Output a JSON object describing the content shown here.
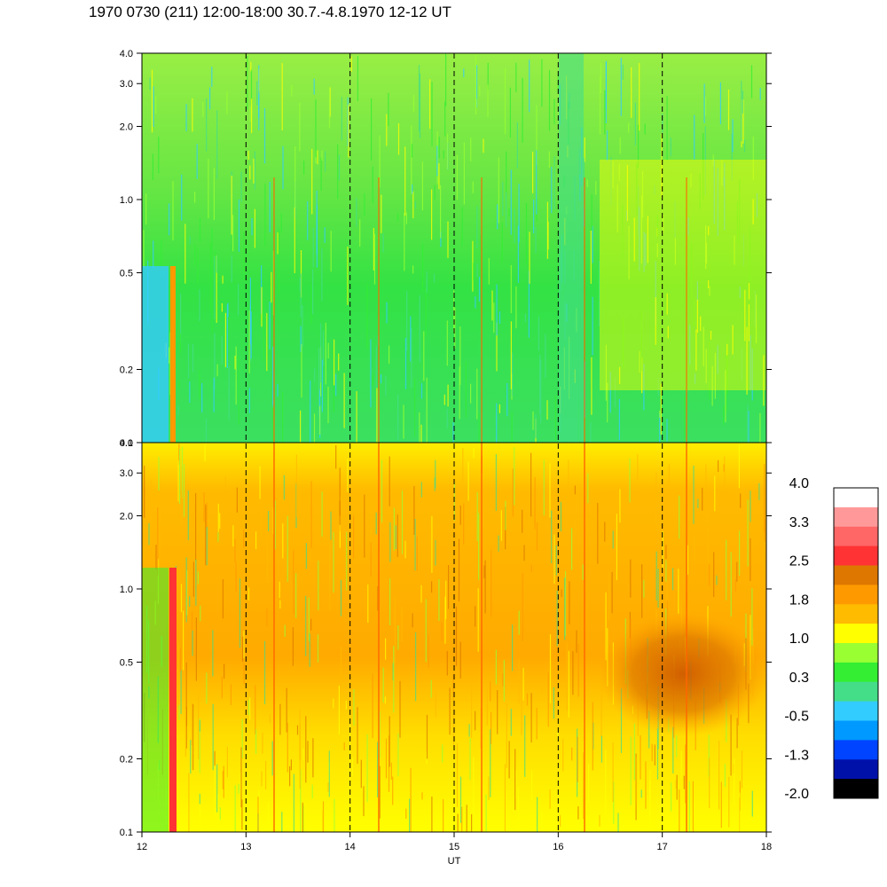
{
  "header": {
    "title": "1970 0730 (211) 12:00-18:00 30.7.-4.8.1970  12-12 UT"
  },
  "chart_data": {
    "type": "heatmap",
    "title": "1970 0730 (211) 12:00-18:00 30.7.-4.8.1970  12-12 UT",
    "xlabel": "UT",
    "xlim": [
      12,
      18
    ],
    "x_ticks": [
      "12",
      "13",
      "14",
      "15",
      "16",
      "17",
      "18"
    ],
    "x_dashed_lines_at": [
      13,
      14,
      15,
      16,
      17
    ],
    "panels": [
      {
        "name": "upper",
        "ylim": [
          0.1,
          4.0
        ],
        "y_scale": "log",
        "y_ticks": [
          {
            "value": 0.1,
            "label": "0.1"
          },
          {
            "value": 0.2,
            "label": "0.2"
          },
          {
            "value": 0.5,
            "label": "0.5"
          },
          {
            "value": 1.0,
            "label": "1.0"
          },
          {
            "value": 2.0,
            "label": "2.0"
          },
          {
            "value": 3.0,
            "label": "3.0"
          },
          {
            "value": 4.0,
            "label": "4.0"
          }
        ]
      },
      {
        "name": "lower",
        "ylim": [
          0.1,
          4.0
        ],
        "y_scale": "log",
        "y_ticks": [
          {
            "value": 0.1,
            "label": "0.1"
          },
          {
            "value": 0.2,
            "label": "0.2"
          },
          {
            "value": 0.5,
            "label": "0.5"
          },
          {
            "value": 1.0,
            "label": "1.0"
          },
          {
            "value": 2.0,
            "label": "2.0"
          },
          {
            "value": 3.0,
            "label": "3.0"
          },
          {
            "value": 4.0,
            "label": "4.0"
          }
        ]
      }
    ],
    "colorbar": {
      "range": [
        -2.0,
        4.0
      ],
      "labels": [
        "4.0",
        "3.3",
        "2.5",
        "1.8",
        "1.0",
        "0.3",
        "-0.5",
        "-1.3",
        "-2.0"
      ],
      "colors_top_to_bottom": [
        "#ffffff",
        "#ff9999",
        "#ff6666",
        "#ff3333",
        "#dd7700",
        "#ff9900",
        "#ffbb00",
        "#ffff00",
        "#99ff33",
        "#33ee33",
        "#44dd88",
        "#33ccff",
        "#0099ff",
        "#0044ff",
        "#0011aa",
        "#000000"
      ]
    }
  }
}
